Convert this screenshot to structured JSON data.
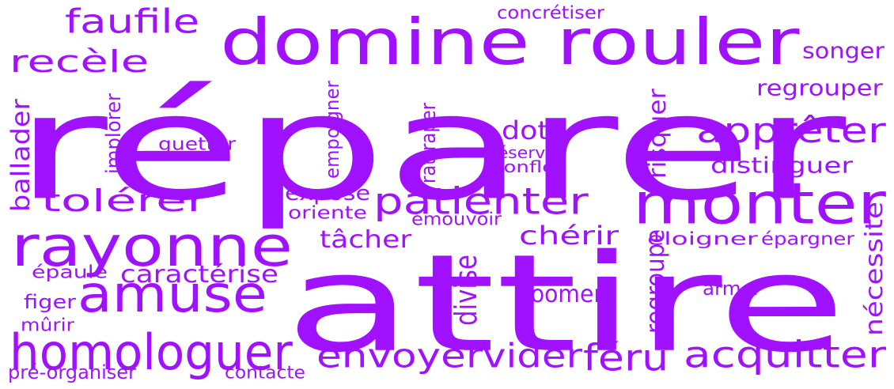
{
  "color": "#a012ff",
  "background": "#ffffff",
  "words": [
    {
      "text": "réparer"
    },
    {
      "text": "attire"
    },
    {
      "text": "domine rouler"
    },
    {
      "text": "monter"
    },
    {
      "text": "rayonne"
    },
    {
      "text": "amuse"
    },
    {
      "text": "homologuer"
    },
    {
      "text": "patienter"
    },
    {
      "text": "apprêter"
    },
    {
      "text": "faufile"
    },
    {
      "text": "recèle"
    },
    {
      "text": "tolérer"
    },
    {
      "text": "envoyer"
    },
    {
      "text": "vider"
    },
    {
      "text": "féru"
    },
    {
      "text": "acquitter"
    },
    {
      "text": "songer"
    },
    {
      "text": "regrouper"
    },
    {
      "text": "distinguer"
    },
    {
      "text": "dote"
    },
    {
      "text": "chérir"
    },
    {
      "text": "tâcher"
    },
    {
      "text": "zoomer"
    },
    {
      "text": "caractérise"
    },
    {
      "text": "expose"
    },
    {
      "text": "concrétiser"
    },
    {
      "text": "guetter"
    },
    {
      "text": "oriente"
    },
    {
      "text": "émouvoir"
    },
    {
      "text": "réserver"
    },
    {
      "text": "gonfler"
    },
    {
      "text": "éloigner"
    },
    {
      "text": "épargner"
    },
    {
      "text": "armer"
    },
    {
      "text": "épaule"
    },
    {
      "text": "figer"
    },
    {
      "text": "mûrir"
    },
    {
      "text": "pré-organiser"
    },
    {
      "text": "contacte"
    },
    {
      "text": "ballader"
    },
    {
      "text": "implorer"
    },
    {
      "text": "empoigner"
    },
    {
      "text": "rattraper"
    },
    {
      "text": "risquer"
    },
    {
      "text": "divise"
    },
    {
      "text": "regroupe"
    },
    {
      "text": "nécessite"
    }
  ]
}
